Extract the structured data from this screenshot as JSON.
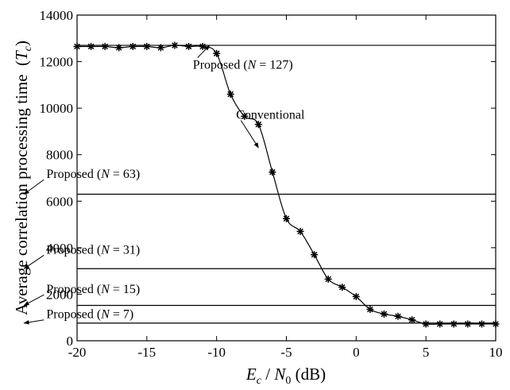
{
  "chart_data": {
    "type": "line",
    "title": "",
    "xlabel": {
      "var_main": "E",
      "var_sub": "c",
      "slash": " / ",
      "var2_main": "N",
      "var2_sub": "0",
      "unit": " (dB)"
    },
    "ylabel": {
      "text": "Average correlation processing time",
      "unit_var": "T",
      "unit_sub": "c"
    },
    "xlim": [
      -20,
      10
    ],
    "ylim": [
      0,
      14000
    ],
    "xticks": [
      -20,
      -15,
      -10,
      -5,
      0,
      5,
      10
    ],
    "xtick_labels": [
      "-20",
      "-15",
      "-10",
      "-5",
      "0",
      "5",
      "10"
    ],
    "yticks": [
      0,
      2000,
      4000,
      6000,
      8000,
      10000,
      12000,
      14000
    ],
    "ytick_labels": [
      "0",
      "2000",
      "4000",
      "6000",
      "8000",
      "10000",
      "12000",
      "14000"
    ],
    "grid": false,
    "series": [
      {
        "name": "Conventional",
        "marker": "asterisk",
        "x": [
          -20,
          -19,
          -18,
          -17,
          -16,
          -15,
          -14,
          -13,
          -12,
          -11,
          -10,
          -9,
          -8,
          -7,
          -6,
          -5,
          -4,
          -3,
          -2,
          -1,
          0,
          1,
          2,
          3,
          4,
          5,
          6,
          7,
          8,
          9,
          10
        ],
        "y": [
          12650,
          12650,
          12650,
          12600,
          12650,
          12650,
          12600,
          12700,
          12650,
          12650,
          12350,
          10600,
          9650,
          9300,
          7250,
          5250,
          4700,
          3700,
          2650,
          2300,
          1900,
          1350,
          1150,
          1050,
          900,
          720,
          720,
          720,
          720,
          720,
          720
        ]
      },
      {
        "name": "Proposed (N = 127)",
        "y": 12700
      },
      {
        "name": "Proposed (N = 63)",
        "y": 6300
      },
      {
        "name": "Proposed (N = 31)",
        "y": 3100
      },
      {
        "name": "Proposed (N = 15)",
        "y": 1520
      },
      {
        "name": "Proposed (N = 7)",
        "y": 760
      }
    ],
    "annotations": [
      {
        "pre": "Proposed (",
        "var": "N",
        "post": " = 127)",
        "text_x": -11.7,
        "text_y": 11900,
        "arrow_x": -10.5,
        "arrow_y": 12700
      },
      {
        "pre": "Conventional",
        "var": "",
        "post": "",
        "text_x": -8.6,
        "text_y": 9750,
        "arrow_x": -7.0,
        "arrow_y": 8300
      },
      {
        "pre": "Proposed (",
        "var": "N",
        "post": " = 63)",
        "text_x": -22.2,
        "text_y": 7200,
        "arrow_x": -23.8,
        "arrow_y": 6300
      },
      {
        "pre": "Proposed (",
        "var": "N",
        "post": " = 31)",
        "text_x": -22.2,
        "text_y": 3950,
        "arrow_x": -23.8,
        "arrow_y": 3100
      },
      {
        "pre": "Proposed (",
        "var": "N",
        "post": " = 15)",
        "text_x": -22.2,
        "text_y": 2250,
        "arrow_x": -23.8,
        "arrow_y": 1520
      },
      {
        "pre": "Proposed (",
        "var": "N",
        "post": " = 7)",
        "text_x": -22.2,
        "text_y": 1170,
        "arrow_x": -23.8,
        "arrow_y": 760
      }
    ]
  }
}
